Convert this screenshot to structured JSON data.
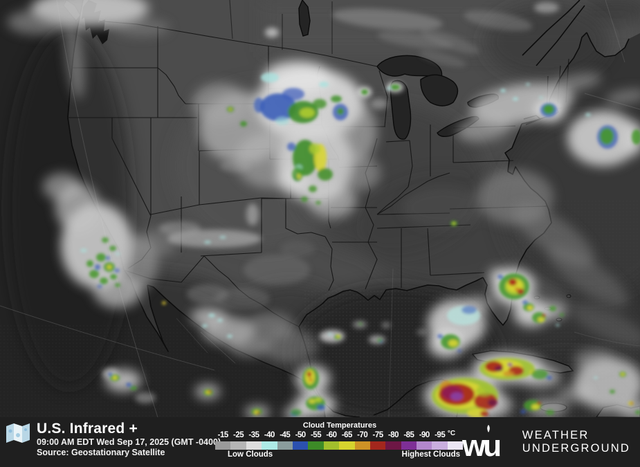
{
  "footer": {
    "title": "U.S. Infrared +",
    "timestamp": "09:00 AM EDT Wed Sep 17, 2025 (GMT -0400)",
    "source": "Source: Geostationary Satellite",
    "icon": "folded-map-icon"
  },
  "legend": {
    "title": "Cloud Temperatures",
    "tick_labels": [
      "-15",
      "-25",
      "-35",
      "-40",
      "-45",
      "-50",
      "-55",
      "-60",
      "-65",
      "-70",
      "-75",
      "-80",
      "-85",
      "-90",
      "-95"
    ],
    "unit": "°C",
    "low_clouds_label": "Low Clouds",
    "highest_clouds_label": "Highest Clouds",
    "colors": [
      "#9a9a9a",
      "#b5b5b5",
      "#dedede",
      "#aeeae6",
      "#8a9c9c",
      "#2b51af",
      "#3d8b27",
      "#a2bf2c",
      "#d6d32e",
      "#cd9226",
      "#a3271d",
      "#6d1745",
      "#7e2f96",
      "#b287cc",
      "#c9aede",
      "#ece6f4"
    ]
  },
  "branding": {
    "mark_text": "wu",
    "name_line1": "WEATHER",
    "name_line2": "UNDERGROUND",
    "logo_icon": "weather-underground-logo"
  },
  "map": {
    "type": "infrared-satellite-map",
    "region": "United States"
  }
}
